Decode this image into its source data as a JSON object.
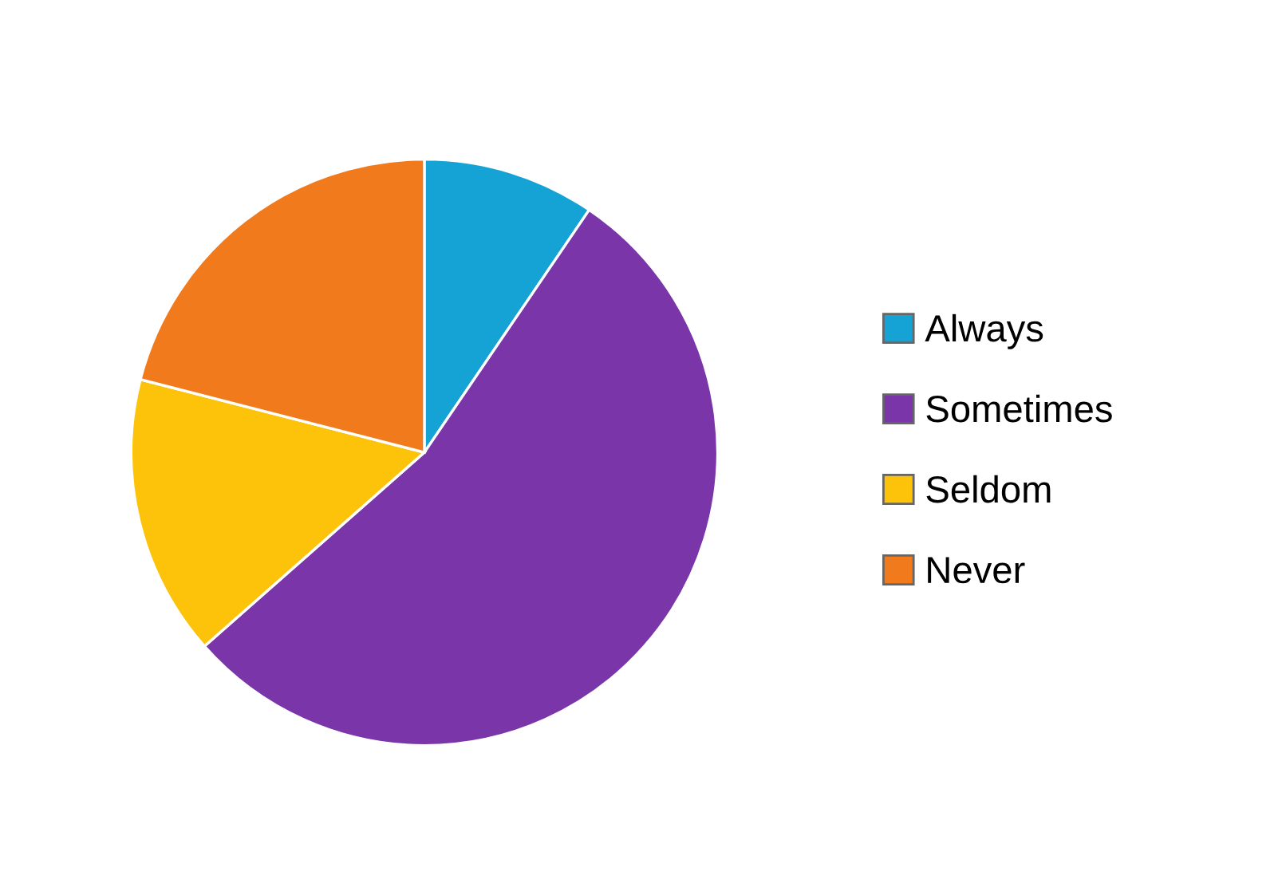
{
  "chart_data": {
    "type": "pie",
    "categories": [
      "Always",
      "Sometimes",
      "Seldom",
      "Never"
    ],
    "values": [
      9.5,
      54,
      15.5,
      21
    ],
    "colors": [
      "#14a3d4",
      "#7a35a8",
      "#fcc30a",
      "#f07a1c"
    ],
    "legend": "right"
  }
}
